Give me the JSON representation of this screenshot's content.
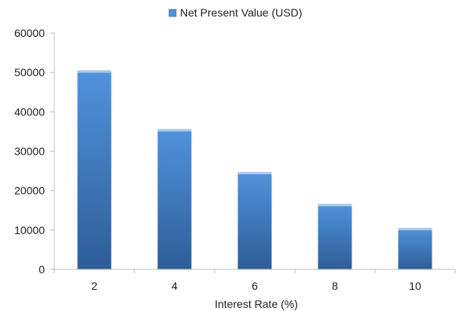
{
  "chart_data": {
    "type": "bar",
    "categories": [
      "2",
      "4",
      "6",
      "8",
      "10"
    ],
    "series": [
      {
        "name": "Net Present Value (USD)",
        "values": [
          50500,
          35600,
          24700,
          16600,
          10500
        ]
      }
    ],
    "xlabel": "Interest Rate (%)",
    "ylabel": "",
    "ylim": [
      0,
      60000
    ],
    "yticks": [
      "0",
      "10000",
      "20000",
      "30000",
      "40000",
      "50000",
      "60000"
    ],
    "grid": false,
    "legend_position": "top-center",
    "colors": {
      "bar_light": "#4f93dc",
      "bar_dark": "#2e5d99",
      "bar_top": "#a7c9ef",
      "axis": "#bfbfbf"
    }
  }
}
